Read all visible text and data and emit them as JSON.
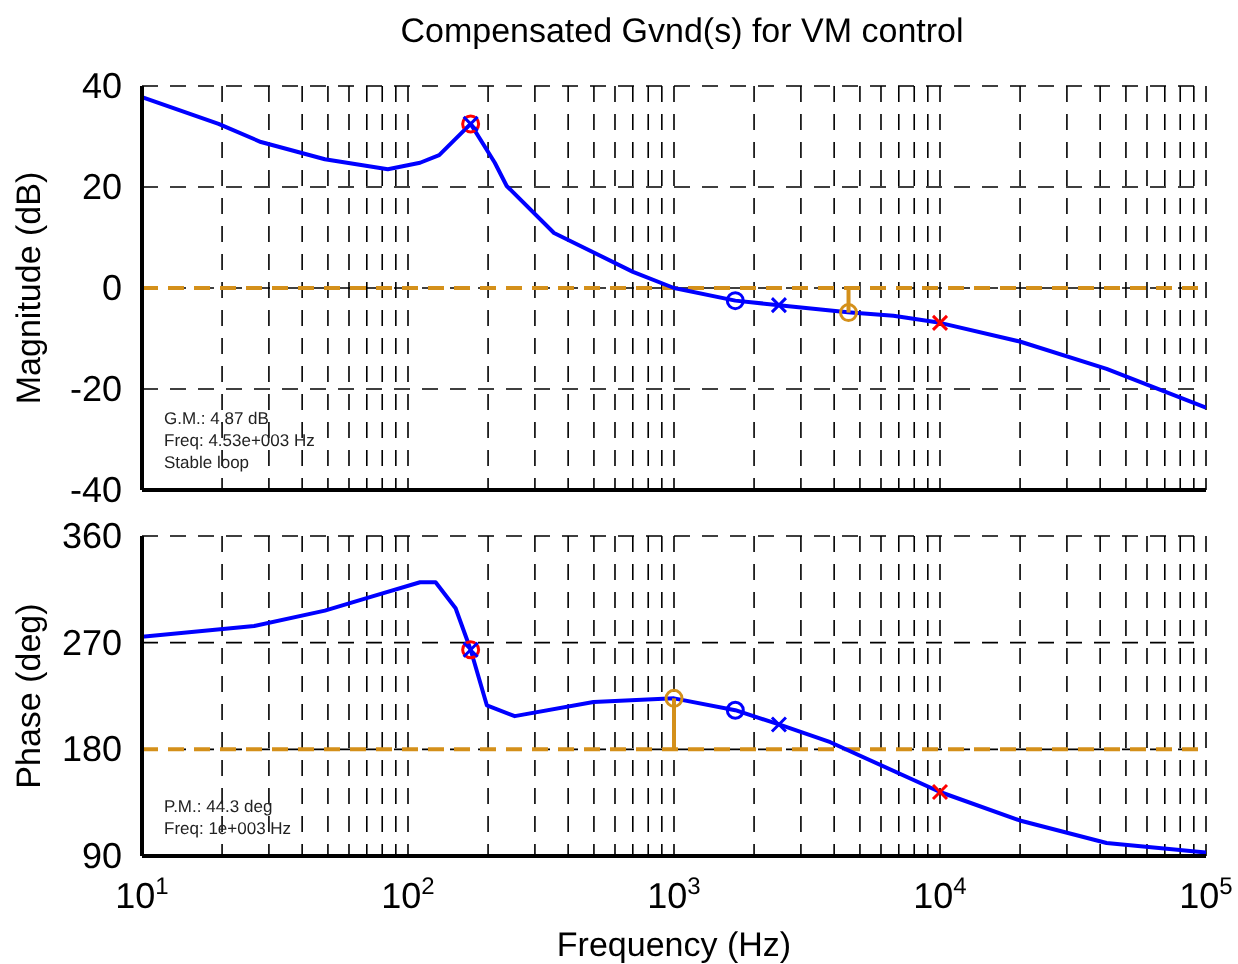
{
  "chart_data": [
    {
      "type": "line",
      "title": "Compensated Gvnd(s) for VM control",
      "ylabel": "Magnitude (dB)",
      "log": "x",
      "grid": true,
      "line_style": "solid",
      "tick_labels": "y",
      "xlim": [
        10,
        100000
      ],
      "xticks": [
        {
          "value": 10,
          "label": null
        },
        {
          "value": 20,
          "label": null
        },
        {
          "value": 30,
          "label": null
        },
        {
          "value": 40,
          "label": null
        },
        {
          "value": 50,
          "label": null
        },
        {
          "value": 60,
          "label": null
        },
        {
          "value": 70,
          "label": null
        },
        {
          "value": 80,
          "label": null
        },
        {
          "value": 90,
          "label": null
        },
        {
          "value": 100,
          "label": null
        },
        {
          "value": 200,
          "label": null
        },
        {
          "value": 300,
          "label": null
        },
        {
          "value": 400,
          "label": null
        },
        {
          "value": 500,
          "label": null
        },
        {
          "value": 600,
          "label": null
        },
        {
          "value": 700,
          "label": null
        },
        {
          "value": 800,
          "label": null
        },
        {
          "value": 900,
          "label": null
        },
        {
          "value": 1000,
          "label": null
        },
        {
          "value": 2000,
          "label": null
        },
        {
          "value": 3000,
          "label": null
        },
        {
          "value": 4000,
          "label": null
        },
        {
          "value": 5000,
          "label": null
        },
        {
          "value": 6000,
          "label": null
        },
        {
          "value": 7000,
          "label": null
        },
        {
          "value": 8000,
          "label": null
        },
        {
          "value": 9000,
          "label": null
        },
        {
          "value": 10000,
          "label": null
        },
        {
          "value": 20000,
          "label": null
        },
        {
          "value": 30000,
          "label": null
        },
        {
          "value": 40000,
          "label": null
        },
        {
          "value": 50000,
          "label": null
        },
        {
          "value": 60000,
          "label": null
        },
        {
          "value": 70000,
          "label": null
        },
        {
          "value": 80000,
          "label": null
        },
        {
          "value": 90000,
          "label": null
        },
        {
          "value": 100000,
          "label": null
        }
      ],
      "ylim": [
        -40,
        40
      ],
      "yticks": [
        -40,
        -20,
        0,
        20,
        40
      ],
      "ref_lines": [
        {
          "axis": "y",
          "value": 0,
          "color": "#d4901a",
          "line_style": "dashed"
        }
      ],
      "annotations": [
        "G.M.: 4.87 dB",
        "Freq: 4.53e+003 Hz",
        "Stable loop"
      ],
      "series": [
        {
          "type": "line",
          "color": "#0000ff",
          "marker": "none",
          "x": [
            10,
            19.4,
            28,
            48.7,
            84,
            111,
            131,
            172,
            212,
            235,
            354,
            701,
            1000,
            1700,
            2480,
            4500,
            6680,
            10000,
            19950,
            42300,
            100000
          ],
          "values": [
            37.8,
            32.5,
            28.9,
            25.5,
            23.5,
            24.8,
            26.3,
            32.5,
            24.8,
            20.2,
            10.9,
            3.2,
            0,
            -2.5,
            -3.4,
            -4.8,
            -5.5,
            -6.9,
            -10.6,
            -16,
            -23.7
          ]
        },
        {
          "type": "line",
          "color": "#d4901a",
          "marker": "none",
          "x": [
            4530,
            4530
          ],
          "values": [
            0,
            -4.87
          ]
        },
        {
          "type": "scatter",
          "color": "#d4901a",
          "marker": "circle",
          "x": [
            4530
          ],
          "values": [
            -4.87
          ]
        },
        {
          "type": "scatter",
          "color": "#ff0000",
          "marker": "circle",
          "x": [
            172
          ],
          "values": [
            32.5
          ]
        },
        {
          "type": "scatter",
          "color": "#0000ff",
          "marker": "circle",
          "x": [
            1700
          ],
          "values": [
            -2.5
          ]
        },
        {
          "type": "scatter",
          "color": "#0000ff",
          "marker": "cross",
          "x": [
            172,
            2480
          ],
          "values": [
            32.5,
            -3.4
          ]
        },
        {
          "type": "scatter",
          "color": "#ff0000",
          "marker": "cross",
          "x": [
            10000
          ],
          "values": [
            -6.9
          ]
        }
      ]
    },
    {
      "type": "line",
      "xlabel": "Frequency (Hz)",
      "ylabel": "Phase (deg)",
      "log": "x",
      "grid": true,
      "line_style": "solid",
      "xlim": [
        10,
        100000
      ],
      "xticks": [
        {
          "value": 10,
          "label": "10$^{1}$"
        },
        {
          "value": 20,
          "label": null
        },
        {
          "value": 30,
          "label": null
        },
        {
          "value": 40,
          "label": null
        },
        {
          "value": 50,
          "label": null
        },
        {
          "value": 60,
          "label": null
        },
        {
          "value": 70,
          "label": null
        },
        {
          "value": 80,
          "label": null
        },
        {
          "value": 90,
          "label": null
        },
        {
          "value": 100,
          "label": "10$^{2}$"
        },
        {
          "value": 200,
          "label": null
        },
        {
          "value": 300,
          "label": null
        },
        {
          "value": 400,
          "label": null
        },
        {
          "value": 500,
          "label": null
        },
        {
          "value": 600,
          "label": null
        },
        {
          "value": 700,
          "label": null
        },
        {
          "value": 800,
          "label": null
        },
        {
          "value": 900,
          "label": null
        },
        {
          "value": 1000,
          "label": "10$^{3}$"
        },
        {
          "value": 2000,
          "label": null
        },
        {
          "value": 3000,
          "label": null
        },
        {
          "value": 4000,
          "label": null
        },
        {
          "value": 5000,
          "label": null
        },
        {
          "value": 6000,
          "label": null
        },
        {
          "value": 7000,
          "label": null
        },
        {
          "value": 8000,
          "label": null
        },
        {
          "value": 9000,
          "label": null
        },
        {
          "value": 10000,
          "label": "10$^{4}$"
        },
        {
          "value": 20000,
          "label": null
        },
        {
          "value": 30000,
          "label": null
        },
        {
          "value": 40000,
          "label": null
        },
        {
          "value": 50000,
          "label": null
        },
        {
          "value": 60000,
          "label": null
        },
        {
          "value": 70000,
          "label": null
        },
        {
          "value": 80000,
          "label": null
        },
        {
          "value": 90000,
          "label": null
        },
        {
          "value": 100000,
          "label": "10$^{5}$"
        }
      ],
      "ylim": [
        90,
        360
      ],
      "yticks": [
        90,
        180,
        270,
        360
      ],
      "ref_lines": [
        {
          "axis": "y",
          "value": 180,
          "color": "#d4901a",
          "line_style": "dashed"
        }
      ],
      "annotations": [
        "P.M.: 44.3 deg",
        "Freq: 1e+003 Hz"
      ],
      "series": [
        {
          "type": "line",
          "color": "#0000ff",
          "marker": "none",
          "x": [
            10,
            26.4,
            48.7,
            73.5,
            111,
            127,
            151,
            172,
            198,
            252,
            498,
            1000,
            1700,
            2480,
            3870,
            10000,
            19950,
            42300,
            100000
          ],
          "values": [
            275,
            284,
            297,
            309,
            321,
            321,
            299,
            264,
            217,
            208,
            220,
            223,
            213,
            201,
            186,
            144,
            120,
            101,
            93
          ]
        },
        {
          "type": "line",
          "color": "#d4901a",
          "marker": "none",
          "x": [
            1000,
            1000
          ],
          "values": [
            180,
            223
          ]
        },
        {
          "type": "scatter",
          "color": "#d4901a",
          "marker": "circle",
          "x": [
            1000
          ],
          "values": [
            223
          ]
        },
        {
          "type": "scatter",
          "color": "#ff0000",
          "marker": "circle",
          "x": [
            172
          ],
          "values": [
            264
          ]
        },
        {
          "type": "scatter",
          "color": "#0000ff",
          "marker": "circle",
          "x": [
            1700
          ],
          "values": [
            213
          ]
        },
        {
          "type": "scatter",
          "color": "#0000ff",
          "marker": "cross",
          "x": [
            172,
            2480
          ],
          "values": [
            264,
            201
          ]
        },
        {
          "type": "scatter",
          "color": "#ff0000",
          "marker": "cross",
          "x": [
            10000
          ],
          "values": [
            144
          ]
        }
      ]
    }
  ]
}
